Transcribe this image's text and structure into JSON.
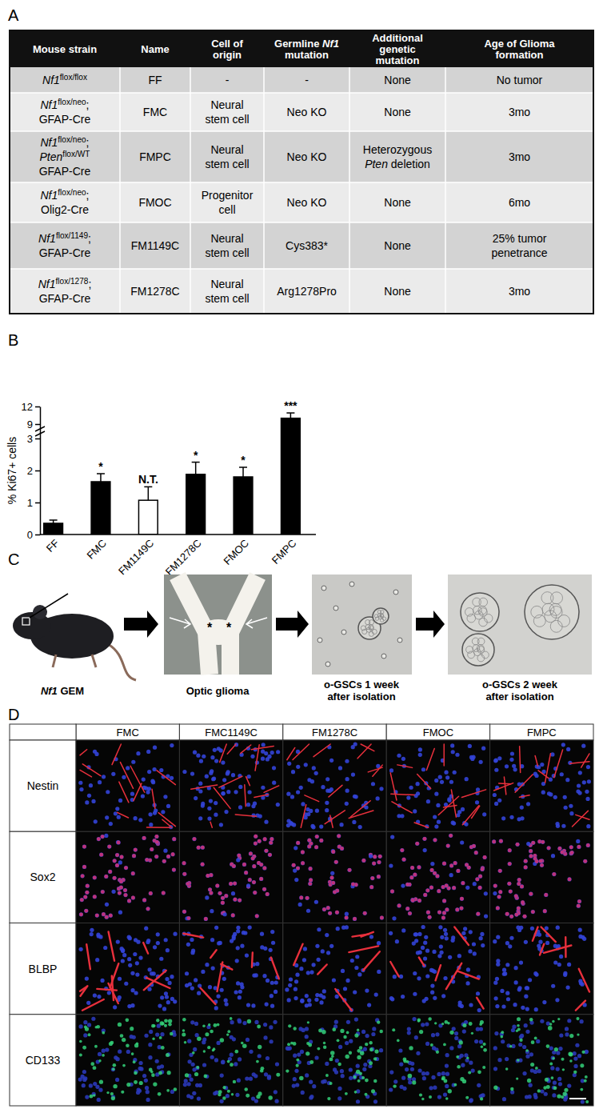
{
  "panel_labels": [
    "A",
    "B",
    "C",
    "D"
  ],
  "table": {
    "header": [
      [
        [
          "Mouse strain"
        ]
      ],
      [
        [
          "Name"
        ]
      ],
      [
        [
          "Cell of"
        ],
        [
          "origin"
        ]
      ],
      [
        [
          "Germline ",
          {
            "text": "Nf1",
            "style": "italic"
          }
        ],
        [
          "mutation"
        ]
      ],
      [
        [
          "Additional"
        ],
        [
          "genetic"
        ],
        [
          "mutation"
        ]
      ],
      [
        [
          "Age of Glioma"
        ],
        [
          "formation"
        ]
      ]
    ],
    "rows": [
      [
        [
          [
            {
              "text": "Nf1",
              "style": "italic"
            },
            {
              "text": "flox/flox",
              "style": "sup"
            }
          ]
        ],
        [
          [
            "FF"
          ]
        ],
        [
          [
            "-"
          ]
        ],
        [
          [
            "-"
          ]
        ],
        [
          [
            "None"
          ]
        ],
        [
          [
            "No tumor"
          ]
        ]
      ],
      [
        [
          [
            {
              "text": "Nf1",
              "style": "italic"
            },
            {
              "text": "flox/neo",
              "style": "sup"
            },
            ";"
          ],
          [
            "GFAP-Cre"
          ]
        ],
        [
          [
            "FMC"
          ]
        ],
        [
          [
            "Neural"
          ],
          [
            "stem cell"
          ]
        ],
        [
          [
            "Neo KO"
          ]
        ],
        [
          [
            "None"
          ]
        ],
        [
          [
            "3mo"
          ]
        ]
      ],
      [
        [
          [
            {
              "text": "Nf1",
              "style": "italic"
            },
            {
              "text": "flox/neo",
              "style": "sup"
            },
            ";"
          ],
          [
            {
              "text": "Pten",
              "style": "italic"
            },
            {
              "text": "flox/WT",
              "style": "sup"
            }
          ],
          [
            "GFAP-Cre"
          ]
        ],
        [
          [
            "FMPC"
          ]
        ],
        [
          [
            "Neural"
          ],
          [
            "stem cell"
          ]
        ],
        [
          [
            "Neo KO"
          ]
        ],
        [
          [
            "Heterozygous"
          ],
          [
            {
              "text": "Pten",
              "style": "italic"
            },
            " deletion"
          ]
        ],
        [
          [
            "3mo"
          ]
        ]
      ],
      [
        [
          [
            {
              "text": "Nf1",
              "style": "italic"
            },
            {
              "text": "flox/neo",
              "style": "sup"
            },
            ";"
          ],
          [
            "Olig2-Cre"
          ]
        ],
        [
          [
            "FMOC"
          ]
        ],
        [
          [
            "Progenitor"
          ],
          [
            "cell"
          ]
        ],
        [
          [
            "Neo KO"
          ]
        ],
        [
          [
            "None"
          ]
        ],
        [
          [
            "6mo"
          ]
        ]
      ],
      [
        [
          [
            {
              "text": "Nf1",
              "style": "italic"
            },
            {
              "text": "flox/1149",
              "style": "sup"
            },
            ";"
          ],
          [
            "GFAP-Cre"
          ]
        ],
        [
          [
            "FM1149C"
          ]
        ],
        [
          [
            "Neural"
          ],
          [
            "stem cell"
          ]
        ],
        [
          [
            "Cys383*"
          ]
        ],
        [
          [
            "None"
          ]
        ],
        [
          [
            "25% tumor"
          ],
          [
            "penetrance"
          ]
        ]
      ],
      [
        [
          [
            {
              "text": "Nf1",
              "style": "italic"
            },
            {
              "text": "flox/1278",
              "style": "sup"
            },
            ";"
          ],
          [
            "GFAP-Cre"
          ]
        ],
        [
          [
            "FM1278C"
          ]
        ],
        [
          [
            "Neural"
          ],
          [
            "stem cell"
          ]
        ],
        [
          [
            "Arg1278Pro"
          ]
        ],
        [
          [
            "None"
          ]
        ],
        [
          [
            "3mo"
          ]
        ]
      ]
    ]
  },
  "chart_data": {
    "type": "bar",
    "y_label": "% Ki67+ cells",
    "categories": [
      "FF",
      "FMC",
      "FM1149C",
      "FM1278C",
      "FMOC",
      "FMPC"
    ],
    "values": [
      0.35,
      1.65,
      1.07,
      1.88,
      1.8,
      10
    ],
    "errors": [
      0.1,
      0.25,
      0.42,
      0.38,
      0.3,
      0.9
    ],
    "annotations": [
      null,
      "*",
      "N.T.",
      "*",
      "*",
      "***"
    ],
    "colors": [
      "#000000",
      "#000000",
      "#ffffff",
      "#000000",
      "#000000",
      "#000000"
    ],
    "ylim": [
      0,
      12
    ],
    "yticks": [
      0,
      1,
      2,
      3,
      9,
      12
    ],
    "y_break": [
      3,
      9
    ],
    "grid": false
  },
  "diagram": {
    "steps": [
      {
        "label": [
          [
            {
              "text": "Nf1",
              "style": "italic"
            },
            " GEM"
          ]
        ]
      },
      {
        "label": [
          [
            "Optic glioma"
          ]
        ],
        "marks": [
          "*",
          "*"
        ]
      },
      {
        "label": [
          [
            "o-GSCs 1 week"
          ],
          [
            "after isolation"
          ]
        ]
      },
      {
        "label": [
          [
            "o-GSCs 2 week"
          ],
          [
            "after isolation"
          ]
        ]
      }
    ]
  },
  "image_grid": {
    "columns": [
      "FMC",
      "FMC1149C",
      "FM1278C",
      "FMOC",
      "FMPC"
    ],
    "rows": [
      {
        "label": "Nestin",
        "color": "#e8303c"
      },
      {
        "label": "Sox2",
        "color": "#d8306e"
      },
      {
        "label": "BLBP",
        "color": "#e8303c"
      },
      {
        "label": "CD133",
        "color": "#34d27a"
      }
    ]
  }
}
